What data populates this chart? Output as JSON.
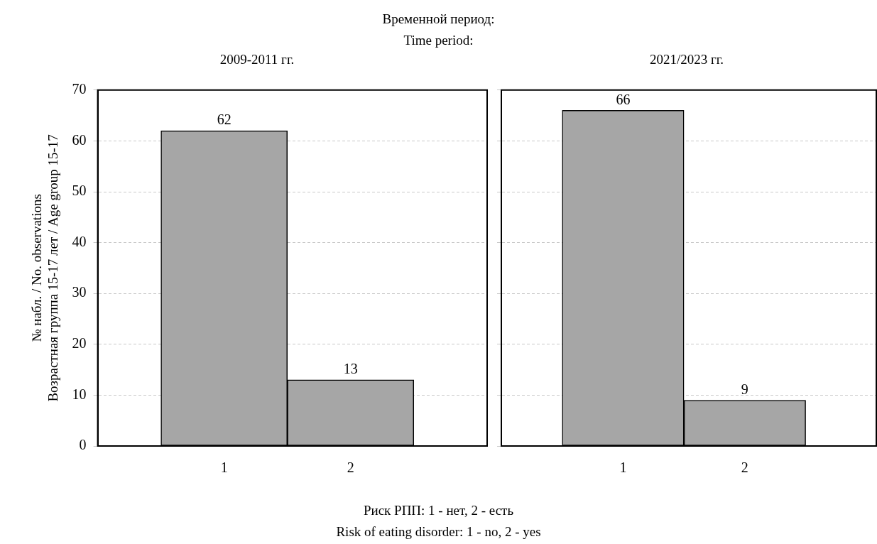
{
  "chart_data": [
    {
      "type": "bar",
      "title": "2009-2011 гг.",
      "annotations": [
        "Временной период:",
        "Time period:"
      ],
      "xlabel": "Риск РПП: 1 - нет, 2 - есть\nRisk of eating disorder: 1 - no, 2 - yes",
      "ylabel": "№ набл. / No. observations\nВозрастная группа 15-17 лет / Age group 15-17",
      "categories": [
        "1",
        "2"
      ],
      "values": [
        62,
        13
      ],
      "color": "#a6a6a6",
      "ylim": [
        0,
        70
      ],
      "yticks": [
        0,
        10,
        20,
        30,
        40,
        50,
        60,
        70
      ],
      "grid": "y",
      "data_labels": true
    },
    {
      "type": "bar",
      "title": "2021/2023 гг.",
      "categories": [
        "1",
        "2"
      ],
      "values": [
        66,
        9
      ],
      "color": "#a6a6a6",
      "ylim": [
        0,
        70
      ],
      "yticks": [
        0,
        10,
        20,
        30,
        40,
        50,
        60,
        70
      ],
      "grid": "y",
      "data_labels": true,
      "tick_labels": "x"
    }
  ]
}
